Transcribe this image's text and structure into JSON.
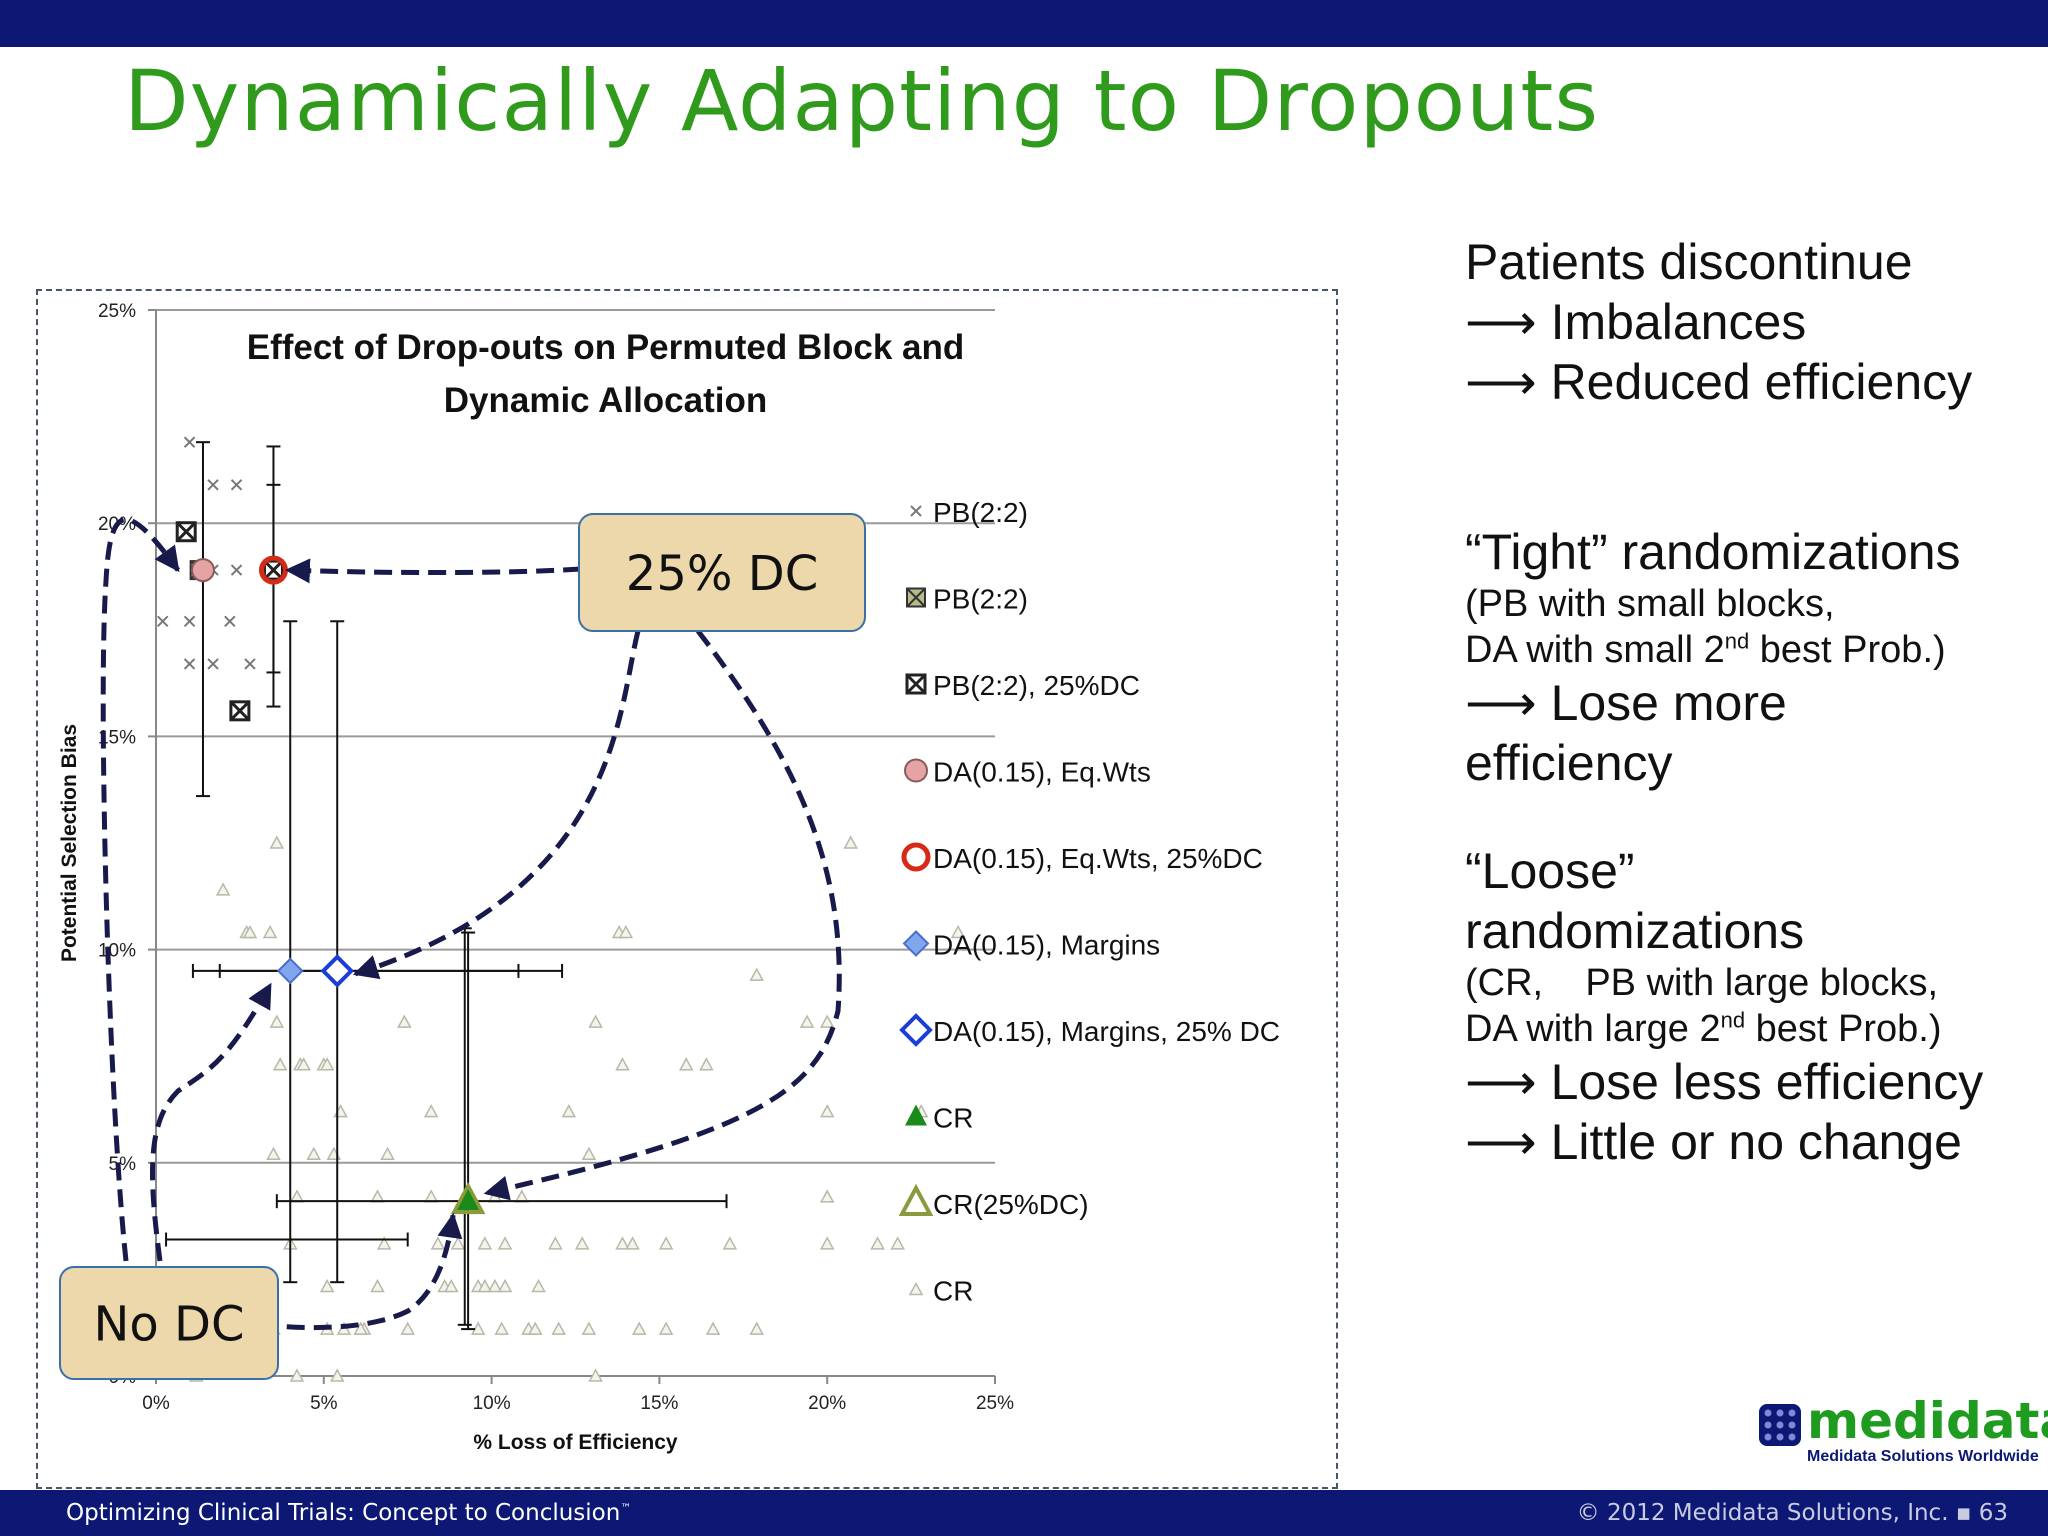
{
  "slide": {
    "title": "Dynamically Adapting to Dropouts",
    "footer_left": "Optimizing Clinical Trials: Concept to Conclusion",
    "footer_tm": "™",
    "footer_right": "© 2012 Medidata Solutions, Inc. ▪ 63"
  },
  "notes": {
    "block1": [
      "Patients discontinue",
      "⟶ Imbalances",
      "⟶ Reduced efficiency"
    ],
    "block2_line1": "“Tight” randomizations",
    "block2_line2": "(PB with small blocks,",
    "block2_line3_a": " DA with small 2",
    "block2_line3_sup": "nd",
    "block2_line3_b": " best Prob.)",
    "block2_line4": "⟶ Lose more",
    "block2_line5": "efficiency",
    "block3_line1": "“Loose”",
    "block3_line2": "randomizations",
    "block3_line3": "(CR,    PB with large blocks,",
    "block3_line4_a": "DA with large 2",
    "block3_line4_sup": "nd",
    "block3_line4_b": " best Prob.)",
    "block3_line5": "⟶ Lose less efficiency",
    "block3_line6": "⟶ Little or no change"
  },
  "logo": {
    "word": "medidata",
    "tagline": "Medidata Solutions Worldwide"
  },
  "callouts": {
    "dc25": "25% DC",
    "nodc": "No DC"
  },
  "colors": {
    "bar": "#0c1874",
    "title": "#2f9a1c",
    "callout_fill": "#ecd8ab",
    "callout_border": "#3b6fa8",
    "arrow": "#171a4a",
    "pink": "#e5a3a3",
    "red": "#d62a16",
    "blue": "#1b3fd6",
    "lightblue": "#7fa6ee",
    "green": "#1a8a1a",
    "olive": "#8c9a3d",
    "gray_tri": "#b8b8a8"
  },
  "chart_data": {
    "type": "scatter",
    "title": "Effect of Drop-outs on Permuted Block and Dynamic Allocation",
    "xlabel": "% Loss of Efficiency",
    "ylabel": "Potential Selection Bias",
    "xlim": [
      0,
      25
    ],
    "ylim": [
      0,
      25
    ],
    "x_ticks": [
      "0%",
      "5%",
      "10%",
      "15%",
      "20%",
      "25%"
    ],
    "y_ticks": [
      "0%",
      "5%",
      "10%",
      "15%",
      "20%",
      "25%"
    ],
    "grid": "horizontal",
    "legend_position": "right",
    "legend": [
      {
        "label": "PB(2:2)",
        "marker": "x-small"
      },
      {
        "label": "PB(2:2)",
        "marker": "x-box-olive"
      },
      {
        "label": "PB(2:2), 25%DC",
        "marker": "x-box-dark"
      },
      {
        "label": "DA(0.15), Eq.Wts",
        "marker": "circle-pink"
      },
      {
        "label": "DA(0.15), Eq.Wts, 25%DC",
        "marker": "circle-red-open"
      },
      {
        "label": "DA(0.15), Margins",
        "marker": "diamond-lightblue"
      },
      {
        "label": "DA(0.15), Margins, 25% DC",
        "marker": "diamond-blue-open"
      },
      {
        "label": "CR",
        "marker": "triangle-green"
      },
      {
        "label": "CR(25%DC)",
        "marker": "triangle-olive-open"
      },
      {
        "label": "CR",
        "marker": "triangle-small-gray"
      }
    ],
    "series": [
      {
        "name": "PB(2:2)",
        "marker": "x-small",
        "points": [
          [
            1.0,
            21.9
          ],
          [
            1.7,
            20.9
          ],
          [
            2.4,
            20.9
          ],
          [
            1.2,
            18.9
          ],
          [
            1.7,
            18.9
          ],
          [
            2.4,
            18.9
          ],
          [
            0.2,
            17.7
          ],
          [
            1.0,
            17.7
          ],
          [
            2.2,
            17.7
          ],
          [
            1.0,
            16.7
          ],
          [
            1.7,
            16.7
          ],
          [
            2.8,
            16.7
          ],
          [
            2.4,
            15.6
          ]
        ]
      },
      {
        "name": "PB(2:2)",
        "marker": "x-box-olive",
        "points": [
          [
            1.3,
            18.9
          ]
        ]
      },
      {
        "name": "PB(2:2), 25%DC",
        "marker": "x-box-dark",
        "points": [
          [
            3.5,
            18.9
          ],
          [
            0.9,
            19.8
          ],
          [
            2.5,
            15.6
          ]
        ],
        "error_x": [
          [
            3.2,
            0.3,
            7.5
          ]
        ],
        "error_y": [
          [
            3.5,
            15.7,
            20.9
          ],
          [
            3.5,
            16.5,
            21.8
          ]
        ]
      },
      {
        "name": "DA(0.15), Eq.Wts",
        "marker": "circle-pink",
        "points": [
          [
            1.4,
            18.9
          ]
        ],
        "error_y": [
          [
            1.4,
            13.6,
            21.9
          ]
        ]
      },
      {
        "name": "DA(0.15), Eq.Wts, 25%DC",
        "marker": "circle-red-open",
        "points": [
          [
            3.5,
            18.9
          ]
        ]
      },
      {
        "name": "DA(0.15), Margins",
        "marker": "diamond-lightblue",
        "points": [
          [
            4.0,
            9.5
          ]
        ],
        "error_x": [
          [
            9.5,
            1.1,
            10.8
          ]
        ],
        "error_y": [
          [
            4.0,
            2.2,
            17.7
          ]
        ]
      },
      {
        "name": "DA(0.15), Margins, 25% DC",
        "marker": "diamond-blue-open",
        "points": [
          [
            5.4,
            9.5
          ]
        ],
        "error_x": [
          [
            9.5,
            1.9,
            12.1
          ]
        ],
        "error_y": [
          [
            5.4,
            2.2,
            17.7
          ]
        ]
      },
      {
        "name": "CR",
        "marker": "triangle-green",
        "points": [
          [
            9.3,
            4.1
          ]
        ],
        "error_x": [
          [
            4.1,
            3.6,
            17.0
          ]
        ],
        "error_y": [
          [
            9.3,
            1.1,
            10.4
          ],
          [
            9.2,
            1.2,
            10.5
          ]
        ]
      },
      {
        "name": "CR(25%DC)",
        "marker": "triangle-olive-open",
        "points": [
          [
            9.3,
            4.1
          ]
        ]
      },
      {
        "name": "CR",
        "marker": "triangle-small-gray",
        "points": [
          [
            1.2,
            0
          ],
          [
            4.2,
            0
          ],
          [
            5.4,
            0
          ],
          [
            13.1,
            0
          ],
          [
            3.5,
            1.1
          ],
          [
            5.1,
            1.1
          ],
          [
            5.6,
            1.1
          ],
          [
            6.2,
            1.1
          ],
          [
            6.1,
            1.1
          ],
          [
            7.5,
            1.1
          ],
          [
            9.6,
            1.1
          ],
          [
            10.3,
            1.1
          ],
          [
            11.1,
            1.1
          ],
          [
            11.3,
            1.1
          ],
          [
            12.0,
            1.1
          ],
          [
            12.9,
            1.1
          ],
          [
            14.4,
            1.1
          ],
          [
            15.2,
            1.1
          ],
          [
            16.6,
            1.1
          ],
          [
            17.9,
            1.1
          ],
          [
            3.4,
            2.1
          ],
          [
            5.1,
            2.1
          ],
          [
            6.6,
            2.1
          ],
          [
            8.6,
            2.1
          ],
          [
            8.8,
            2.1
          ],
          [
            9.6,
            2.1
          ],
          [
            9.8,
            2.1
          ],
          [
            10.1,
            2.1
          ],
          [
            10.4,
            2.1
          ],
          [
            11.4,
            2.1
          ],
          [
            4.0,
            3.1
          ],
          [
            6.8,
            3.1
          ],
          [
            8.4,
            3.1
          ],
          [
            9.0,
            3.1
          ],
          [
            9.8,
            3.1
          ],
          [
            10.4,
            3.1
          ],
          [
            11.9,
            3.1
          ],
          [
            12.7,
            3.1
          ],
          [
            13.9,
            3.1
          ],
          [
            14.2,
            3.1
          ],
          [
            15.2,
            3.1
          ],
          [
            17.1,
            3.1
          ],
          [
            20.0,
            3.1
          ],
          [
            21.5,
            3.1
          ],
          [
            22.1,
            3.1
          ],
          [
            4.2,
            4.2
          ],
          [
            6.6,
            4.2
          ],
          [
            8.2,
            4.2
          ],
          [
            10.1,
            4.2
          ],
          [
            10.9,
            4.2
          ],
          [
            20.0,
            4.2
          ],
          [
            3.5,
            5.2
          ],
          [
            4.7,
            5.2
          ],
          [
            5.3,
            5.2
          ],
          [
            6.9,
            5.2
          ],
          [
            12.9,
            5.2
          ],
          [
            5.5,
            6.2
          ],
          [
            8.2,
            6.2
          ],
          [
            12.3,
            6.2
          ],
          [
            20.0,
            6.2
          ],
          [
            22.8,
            6.2
          ],
          [
            3.7,
            7.3
          ],
          [
            4.3,
            7.3
          ],
          [
            4.4,
            7.3
          ],
          [
            5.0,
            7.3
          ],
          [
            5.1,
            7.3
          ],
          [
            13.9,
            7.3
          ],
          [
            15.8,
            7.3
          ],
          [
            16.4,
            7.3
          ],
          [
            3.6,
            8.3
          ],
          [
            7.4,
            8.3
          ],
          [
            13.1,
            8.3
          ],
          [
            19.4,
            8.3
          ],
          [
            20.0,
            8.3
          ],
          [
            17.9,
            9.4
          ],
          [
            2.7,
            10.4
          ],
          [
            2.8,
            10.4
          ],
          [
            3.4,
            10.4
          ],
          [
            13.8,
            10.4
          ],
          [
            14.0,
            10.4
          ],
          [
            23.9,
            10.4
          ],
          [
            2.0,
            11.4
          ],
          [
            3.6,
            12.5
          ],
          [
            20.7,
            12.5
          ]
        ]
      }
    ],
    "annotations": [
      "25% DC",
      "No DC"
    ]
  }
}
